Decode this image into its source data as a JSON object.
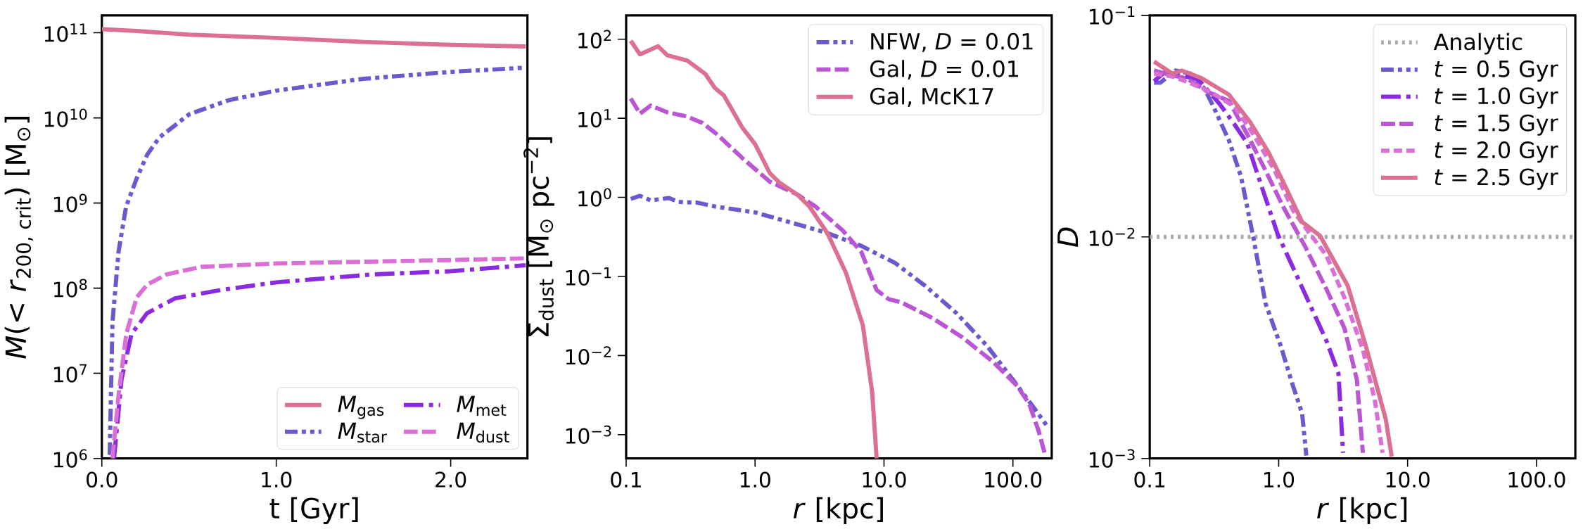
{
  "chart_data": [
    {
      "type": "line",
      "xlabel": "t  [Gyr]",
      "ylabel": "*M*(< *r*$_{200, crit}$)  [M$_{⊙}$]",
      "log": "y",
      "legend": "bottom right",
      "xlim": [
        0,
        2.44
      ],
      "ylim": [
        1000000,
        160000000000
      ],
      "xticks": [
        {
          "value": 0,
          "label": "0.0"
        },
        {
          "value": 1,
          "label": "1.0"
        },
        {
          "value": 2,
          "label": "2.0"
        }
      ],
      "yticks": [
        {
          "value": 1000000,
          "label": "10$^{6}$"
        },
        {
          "value": 10000000,
          "label": "10$^{7}$"
        },
        {
          "value": 100000000,
          "label": "10$^{8}$"
        },
        {
          "value": 1000000000,
          "label": "10$^{9}$"
        },
        {
          "value": 10000000000,
          "label": "10$^{10}$"
        },
        {
          "value": 100000000000,
          "label": "10$^{11}$"
        }
      ],
      "series": [
        {
          "name": "*M*$_{gas}$",
          "color": "#db7093",
          "line_style": "solid",
          "x": [
            0,
            0.2,
            0.5,
            1.0,
            1.5,
            2.0,
            2.43
          ],
          "values": [
            110000000000,
            105000000000,
            95000000000,
            87000000000,
            78000000000,
            72000000000,
            69000000000
          ]
        },
        {
          "name": "*M*$_{star}$",
          "color": "#6a5acd",
          "line_style": "dashdotdot",
          "x": [
            0.045,
            0.061,
            0.096,
            0.139,
            0.2,
            0.26,
            0.33,
            0.5,
            0.73,
            1.0,
            1.5,
            2.0,
            2.43
          ],
          "values": [
            1100000,
            40000000,
            270000000,
            910000000,
            1950000000,
            3700000000,
            5900000000,
            11000000000,
            16200000000,
            20900000000,
            28800000000,
            34700000000,
            38900000000
          ]
        },
        {
          "name": "*M*$_{met}$",
          "color": "#8a2be2",
          "line_style": "dashdot",
          "x": [
            0.07,
            0.113,
            0.17,
            0.26,
            0.42,
            0.68,
            1.0,
            1.55,
            2.0,
            2.43
          ],
          "values": [
            1000000,
            8500000,
            29000000,
            51000000,
            76000000,
            95000000,
            117000000,
            145000000,
            158000000,
            186000000
          ]
        },
        {
          "name": "*M*$_{dust}$",
          "color": "#da70d6",
          "line_style": "dashed",
          "x": [
            0.061,
            0.096,
            0.14,
            0.2,
            0.26,
            0.37,
            0.57,
            1.0,
            2.0,
            2.43
          ],
          "values": [
            1000000,
            5600000,
            29000000,
            78000000,
            110000000,
            145000000,
            178000000,
            195000000,
            214000000,
            224000000
          ]
        }
      ]
    },
    {
      "type": "line",
      "xlabel": "*r*  [kpc]",
      "ylabel": "Σ$_{dust}$  [M$_{⊙}$ pc$^{−2}$]",
      "log": "xy",
      "legend": "top right",
      "xlim": [
        0.1,
        200
      ],
      "ylim": [
        0.0005,
        200
      ],
      "xticks": [
        {
          "value": 0.1,
          "label": "0.1"
        },
        {
          "value": 1,
          "label": "1.0"
        },
        {
          "value": 10,
          "label": "10.0"
        },
        {
          "value": 100,
          "label": "100.0"
        }
      ],
      "yticks": [
        {
          "value": 0.001,
          "label": "10$^{−3}$"
        },
        {
          "value": 0.01,
          "label": "10$^{−2}$"
        },
        {
          "value": 0.1,
          "label": "10$^{−1}$"
        },
        {
          "value": 1,
          "label": "10$^{0}$"
        },
        {
          "value": 10,
          "label": "10$^{1}$"
        },
        {
          "value": 100,
          "label": "10$^{2}$"
        }
      ],
      "series": [
        {
          "name": "NFW, *D* = 0.01",
          "color": "#6a5acd",
          "line_style": "dashdotdot",
          "x": [
            0.1086,
            0.128,
            0.155,
            0.215,
            0.253,
            0.351,
            0.486,
            1.0,
            2.01,
            3.47,
            6.68,
            12.2,
            20.9,
            36.3,
            63.1,
            107,
            150,
            182
          ],
          "values": [
            0.957,
            1.045,
            0.916,
            0.982,
            0.875,
            0.861,
            0.767,
            0.646,
            0.468,
            0.363,
            0.243,
            0.148,
            0.0759,
            0.0347,
            0.0132,
            0.00427,
            0.00204,
            0.00132
          ]
        },
        {
          "name": "Gal, *D* = 0.01",
          "color": "#ba55d3",
          "line_style": "dashed",
          "x": [
            0.1086,
            0.128,
            0.155,
            0.209,
            0.298,
            0.391,
            0.514,
            0.794,
            1.3,
            2.12,
            2.94,
            4.81,
            6.68,
            8.77,
            10.9,
            13.6,
            23.4,
            40.5,
            69.8,
            108,
            134,
            158,
            176
          ],
          "values": [
            17.8,
            11.4,
            14.5,
            11.9,
            10.5,
            8.75,
            6.14,
            3.16,
            1.58,
            1.09,
            0.767,
            0.378,
            0.203,
            0.0671,
            0.0515,
            0.0471,
            0.0302,
            0.017,
            0.00838,
            0.00412,
            0.00243,
            0.00112,
            0.000589
          ]
        },
        {
          "name": "Gal, McK17",
          "color": "#db7093",
          "line_style": "solid",
          "x": [
            0.1086,
            0.128,
            0.177,
            0.209,
            0.298,
            0.413,
            0.486,
            0.573,
            0.794,
            1.0,
            1.3,
            1.53,
            2.12,
            2.64,
            3.66,
            5.08,
            6.85,
            8.09,
            8.77
          ],
          "values": [
            95.5,
            64.3,
            81.3,
            62.5,
            53.7,
            36.1,
            24.3,
            19.4,
            7.67,
            4.71,
            2.03,
            1.56,
            1.09,
            0.767,
            0.347,
            0.11,
            0.0243,
            0.00347,
            0.0005
          ]
        }
      ]
    },
    {
      "type": "line",
      "xlabel": "*r*  [kpc]",
      "ylabel": "*D*",
      "log": "xy",
      "legend": "top right",
      "xlim": [
        0.1,
        200
      ],
      "ylim": [
        0.001,
        0.1
      ],
      "xticks": [
        {
          "value": 0.1,
          "label": "0.1"
        },
        {
          "value": 1,
          "label": "1.0"
        },
        {
          "value": 10,
          "label": "10.0"
        },
        {
          "value": 100,
          "label": "100.0"
        }
      ],
      "yticks": [
        {
          "value": 0.001,
          "label": "10$^{−3}$"
        },
        {
          "value": 0.01,
          "label": "10$^{−2}$"
        },
        {
          "value": 0.1,
          "label": "10$^{−1}$"
        }
      ],
      "series": [
        {
          "name": "Analytic",
          "color": "#aaaaaa",
          "line_style": "dotted",
          "x": [
            0.1,
            200
          ],
          "values": [
            0.01,
            0.01
          ]
        },
        {
          "name": "*t* = 0.5 Gyr",
          "color": "#6a5acd",
          "line_style": "dashdotdot",
          "x": [
            0.108,
            0.121,
            0.158,
            0.208,
            0.266,
            0.313,
            0.411,
            0.511,
            0.635,
            0.791,
            1.04,
            1.29,
            1.52,
            1.64
          ],
          "values": [
            0.0497,
            0.0497,
            0.0564,
            0.0546,
            0.0467,
            0.0386,
            0.0273,
            0.0187,
            0.01,
            0.00501,
            0.00321,
            0.00213,
            0.0016,
            0.00103
          ]
        },
        {
          "name": "*t* = 1.0 Gyr",
          "color": "#8a2be2",
          "line_style": "dashdot",
          "x": [
            0.108,
            0.131,
            0.172,
            0.239,
            0.349,
            0.458,
            0.57,
            0.748,
            0.982,
            1.36,
            1.78,
            2.34,
            2.91,
            3.16
          ],
          "values": [
            0.0505,
            0.0555,
            0.0537,
            0.0513,
            0.0398,
            0.032,
            0.0265,
            0.0165,
            0.0103,
            0.00682,
            0.00483,
            0.00341,
            0.00242,
            0.00106
          ]
        },
        {
          "name": "*t* = 1.5 Gyr",
          "color": "#ba55d3",
          "line_style": "dashed",
          "x": [
            0.108,
            0.146,
            0.192,
            0.281,
            0.411,
            0.57,
            0.789,
            1.09,
            1.6,
            2.34,
            3.24,
            4.04,
            4.5
          ],
          "values": [
            0.0564,
            0.0537,
            0.0521,
            0.0452,
            0.0411,
            0.0291,
            0.02,
            0.0136,
            0.00908,
            0.00583,
            0.00387,
            0.00227,
            0.00106
          ]
        },
        {
          "name": "*t* = 2.0 Gyr",
          "color": "#da70d6",
          "line_style": "shortdashed",
          "x": [
            0.108,
            0.15,
            0.203,
            0.296,
            0.458,
            0.635,
            0.929,
            1.29,
            1.69,
            2.34,
            3.24,
            4.5,
            5.58,
            6.4
          ],
          "values": [
            0.0546,
            0.053,
            0.0497,
            0.0452,
            0.0386,
            0.0291,
            0.02,
            0.0132,
            0.0106,
            0.00826,
            0.00531,
            0.0031,
            0.00182,
            0.00106
          ]
        },
        {
          "name": "*t* = 2.5 Gyr",
          "color": "#db7093",
          "line_style": "solid",
          "x": [
            0.108,
            0.15,
            0.177,
            0.252,
            0.411,
            0.601,
            0.834,
            1.09,
            1.52,
            2.1,
            3.43,
            4.75,
            6.76,
            7.53
          ],
          "values": [
            0.0619,
            0.0546,
            0.0564,
            0.0521,
            0.0439,
            0.033,
            0.0241,
            0.0176,
            0.0117,
            0.0101,
            0.00603,
            0.00321,
            0.00151,
            0.00102
          ]
        }
      ]
    }
  ]
}
